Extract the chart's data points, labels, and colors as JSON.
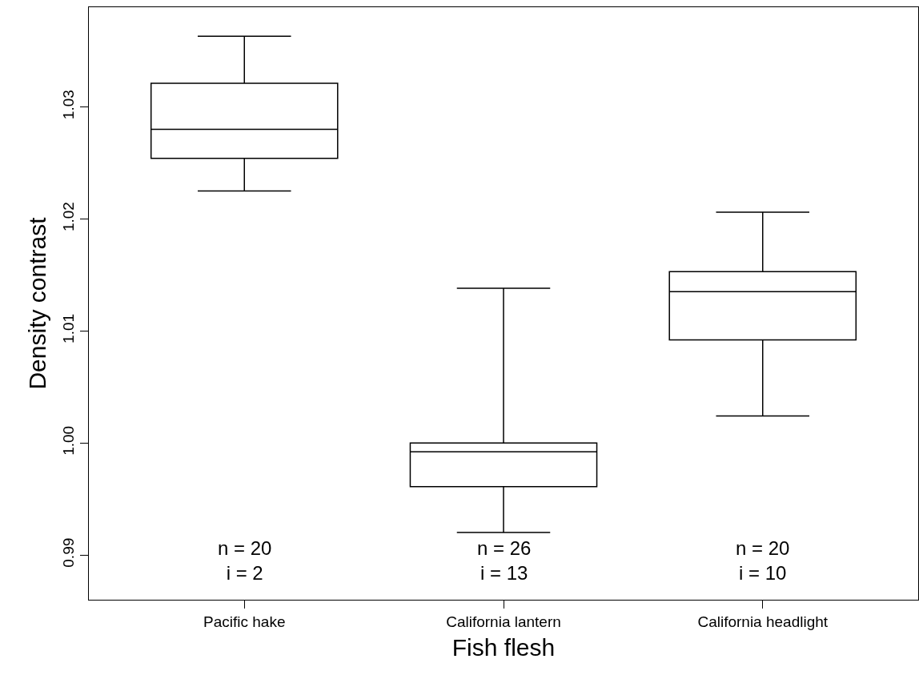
{
  "chart_data": {
    "type": "box",
    "xlabel": "Fish flesh",
    "ylabel": "Density contrast",
    "categories": [
      "Pacific hake",
      "California lantern",
      "California headlight"
    ],
    "boxes": [
      {
        "low": 1.0225,
        "q1": 1.0254,
        "median": 1.028,
        "q3": 1.0321,
        "high": 1.0363
      },
      {
        "low": 0.992,
        "q1": 0.9961,
        "median": 0.9992,
        "q3": 1.0,
        "high": 1.0138
      },
      {
        "low": 1.0024,
        "q1": 1.0092,
        "median": 1.0135,
        "q3": 1.0153,
        "high": 1.0206
      }
    ],
    "color": "#000000",
    "ylim": [
      0.986,
      1.0389
    ],
    "yticks": [
      0.99,
      {
        "value": 1.0,
        "label": "1.00"
      },
      1.01,
      1.02,
      1.03
    ],
    "grid": false,
    "annotations": [
      "n = 20\ni = 2",
      "n = 26\ni = 13",
      "n = 20\ni = 10"
    ]
  }
}
